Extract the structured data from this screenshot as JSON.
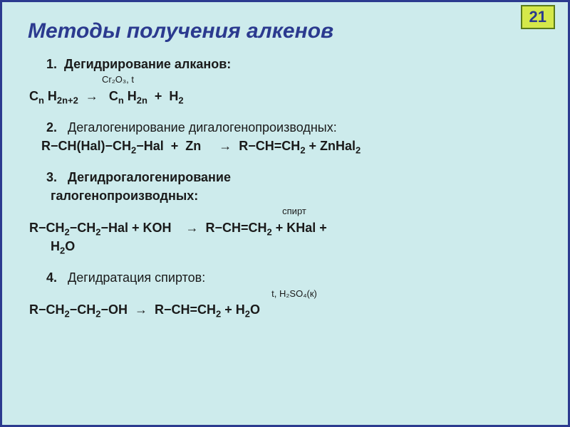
{
  "colors": {
    "slide_bg": "#cdebec",
    "slide_border": "#2b3a8f",
    "title_color": "#2b3a8f",
    "text_color": "#1a1a1a",
    "badge_bg": "#d5e84a",
    "badge_border": "#5a7a1a",
    "badge_text": "#2b3a8f"
  },
  "typography": {
    "title_size": 30,
    "body_size": 18
  },
  "badge": "21",
  "title": "Методы получения алкенов",
  "sections": [
    {
      "num": "1.",
      "head": "Дегидрирование алканов:",
      "catalyst": "Cr₂O₃, t",
      "eq_html": "C<sub>n</sub> H<sub>2n+2</sub>&nbsp;&nbsp;→&nbsp;&nbsp;&nbsp;C<sub>n</sub> H<sub>2n</sub>&nbsp;&nbsp;+&nbsp;&nbsp;H<sub>2</sub>"
    },
    {
      "num": "2.",
      "head": "Дегалогенирование дигалогенопроизводных",
      "head_plain": true,
      "eq_html": "&nbsp;R−CH(Hal)−CH<sub>2</sub>−Hal&nbsp;&nbsp;+&nbsp;&nbsp;Zn&nbsp;&nbsp;&nbsp;&nbsp;&nbsp;→&nbsp;&nbsp;R−CH=CH<sub>2</sub>&nbsp;+&nbsp;ZnHal<sub>2</sub>"
    },
    {
      "num": "3.",
      "head": "Дегидрогалогенирование",
      "head_cont": "галогенопроизводных:",
      "catalyst": "спирт",
      "catalyst_center": true,
      "eq_html": "R−CH<sub>2</sub>−CH<sub>2</sub>−Hal&nbsp;+&nbsp;KOH&nbsp;&nbsp;&nbsp;&nbsp;→&nbsp;&nbsp;R−CH=CH<sub>2</sub>&nbsp;+&nbsp;KHal&nbsp;+",
      "eq_cont": "H<sub>2</sub>O"
    },
    {
      "num": "4.",
      "head": "Дегидратация спиртов",
      "head_plain": true,
      "catalyst": "t, H₂SO₄(к)",
      "catalyst_center": true,
      "eq_html": "R−CH<sub>2</sub>−CH<sub>2</sub>−OH&nbsp;&nbsp;→&nbsp;&nbsp;R−CH=CH<sub>2</sub>&nbsp;+&nbsp;H<sub>2</sub>O"
    }
  ]
}
